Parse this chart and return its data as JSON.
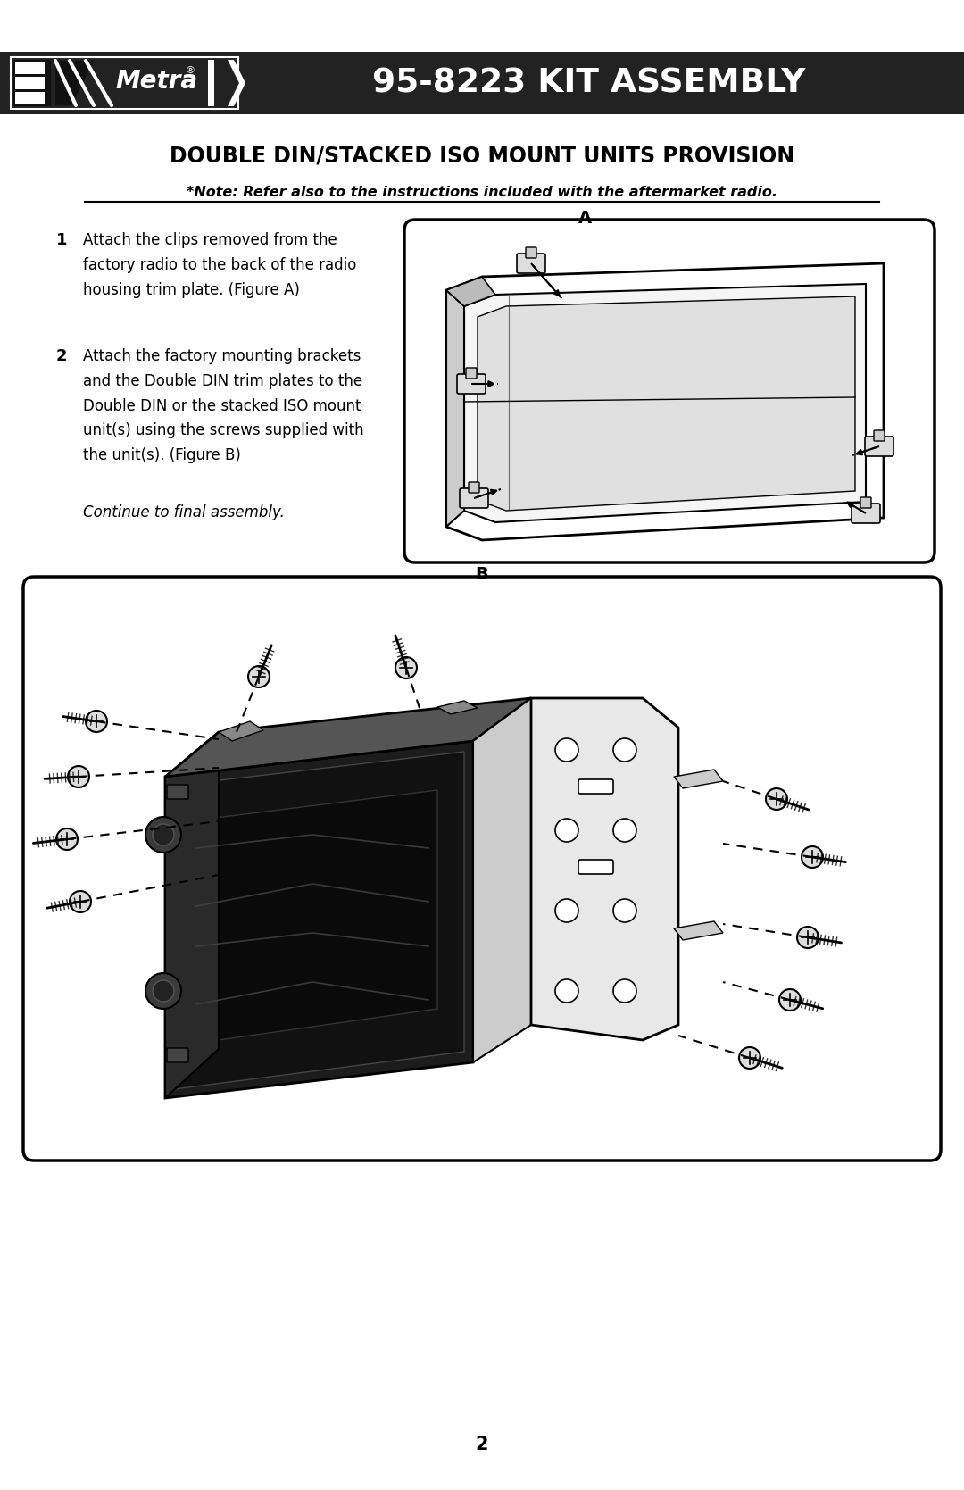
{
  "title": "95-8223 KIT ASSEMBLY",
  "section_title": "DOUBLE DIN/STACKED ISO MOUNT UNITS PROVISION",
  "note_text": "*Note: Refer also to the instructions included with the aftermarket radio.",
  "step1_num": "1",
  "step1_text": "Attach the clips removed from the\nfactory radio to the back of the radio\nhousing trim plate. (Figure A)",
  "step2_num": "2",
  "step2_text": "Attach the factory mounting brackets\nand the Double DIN trim plates to the\nDouble DIN or the stacked ISO mount\nunit(s) using the screws supplied with\nthe unit(s). (Figure B)",
  "continue_text": "Continue to final assembly.",
  "fig_a_label": "A",
  "fig_b_label": "B",
  "page_num": "2",
  "header_bg": "#222222",
  "header_text_color": "#ffffff",
  "body_bg": "#ffffff",
  "body_text_color": "#000000"
}
